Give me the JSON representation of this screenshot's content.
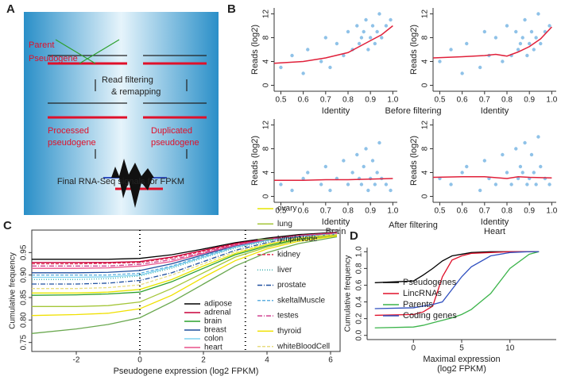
{
  "panel_letters": [
    "A",
    "B",
    "C",
    "D"
  ],
  "panel_a": {
    "parent_label": [
      "Parent",
      "Pseudogene"
    ],
    "filter_label": [
      "Read filtering",
      "& remapping"
    ],
    "processed_label": [
      "Processed",
      "pseudogene"
    ],
    "duplicated_label": [
      "Duplicated",
      "pseudogene"
    ],
    "final_label": "Final RNA-Seq signals for FPKM"
  },
  "panel_b": {
    "before": "Before filtering",
    "after": "After filtering"
  },
  "chart_data": [
    {
      "type": "scatter",
      "xlabel": "Identity",
      "ylabel": "Reads (log2)",
      "xlim": [
        0.47,
        1.02
      ],
      "ylim": [
        -1,
        13
      ],
      "xticks": [
        0.5,
        0.6,
        0.7,
        0.8,
        0.9,
        {
          "value": 1.0,
          "label": "1.0"
        }
      ],
      "yticks": [
        0,
        4,
        8,
        12
      ],
      "points": {
        "color": "#6aaee0",
        "x": [
          0.5,
          0.55,
          0.6,
          0.62,
          0.68,
          0.7,
          0.72,
          0.75,
          0.78,
          0.8,
          0.82,
          0.84,
          0.85,
          0.86,
          0.87,
          0.88,
          0.89,
          0.9,
          0.91,
          0.92,
          0.93,
          0.94,
          0.95,
          0.97,
          0.99
        ],
        "values": [
          3,
          5,
          2,
          6,
          4,
          8,
          3,
          7,
          5,
          9,
          6,
          10,
          7,
          8,
          9,
          11,
          6,
          8,
          10,
          7,
          9,
          12,
          8,
          10,
          11
        ]
      },
      "line": {
        "color": "#e0203a",
        "x": [
          0.47,
          0.6,
          0.7,
          0.8,
          0.85,
          0.9,
          0.95,
          1.0
        ],
        "values": [
          3.7,
          4.0,
          4.6,
          5.5,
          6.5,
          7.5,
          8.5,
          10
        ]
      }
    },
    {
      "type": "scatter",
      "xlabel": "Identity",
      "ylabel": "Reads (log2)",
      "xlim": [
        0.47,
        1.02
      ],
      "ylim": [
        -1,
        13
      ],
      "xticks": [
        0.5,
        0.6,
        0.7,
        0.8,
        0.9,
        {
          "value": 1.0,
          "label": "1.0"
        }
      ],
      "yticks": [
        0,
        4,
        8,
        12
      ],
      "points": {
        "color": "#6aaee0",
        "x": [
          0.5,
          0.55,
          0.6,
          0.62,
          0.68,
          0.7,
          0.72,
          0.75,
          0.78,
          0.8,
          0.82,
          0.84,
          0.85,
          0.86,
          0.87,
          0.88,
          0.89,
          0.9,
          0.91,
          0.92,
          0.93,
          0.94,
          0.95,
          0.97,
          0.99
        ],
        "values": [
          4,
          6,
          2,
          7,
          3,
          9,
          5,
          8,
          4,
          10,
          5,
          9,
          6,
          7,
          8,
          11,
          5,
          7,
          9,
          6,
          8,
          12,
          7,
          9,
          10
        ]
      },
      "line": {
        "color": "#e0203a",
        "x": [
          0.47,
          0.6,
          0.7,
          0.75,
          0.8,
          0.85,
          0.9,
          0.95,
          1.0
        ],
        "values": [
          4.6,
          4.8,
          5.0,
          5.2,
          4.9,
          5.6,
          6.5,
          7.8,
          9.8
        ]
      }
    },
    {
      "type": "scatter",
      "xlabel": "Identity",
      "subtitle": "Brain",
      "ylabel": "Reads (log2)",
      "xlim": [
        0.47,
        1.02
      ],
      "ylim": [
        -1,
        13
      ],
      "xticks": [
        0.5,
        0.6,
        0.7,
        0.8,
        0.9,
        {
          "value": 1.0,
          "label": "1.0"
        }
      ],
      "yticks": [
        0,
        4,
        8,
        12
      ],
      "points": {
        "color": "#6aaee0",
        "x": [
          0.5,
          0.55,
          0.6,
          0.62,
          0.68,
          0.7,
          0.72,
          0.75,
          0.78,
          0.8,
          0.82,
          0.84,
          0.85,
          0.86,
          0.87,
          0.88,
          0.89,
          0.9,
          0.91,
          0.92,
          0.93,
          0.94,
          0.95,
          0.97,
          0.99
        ],
        "values": [
          2,
          1,
          3,
          4,
          2,
          5,
          1,
          3,
          6,
          2,
          4,
          7,
          3,
          2,
          5,
          8,
          1,
          3,
          6,
          2,
          4,
          9,
          3,
          2,
          1
        ]
      },
      "line": {
        "color": "#e0203a",
        "x": [
          0.47,
          0.6,
          0.7,
          0.8,
          0.9,
          1.0
        ],
        "values": [
          2.7,
          2.7,
          2.8,
          2.8,
          2.9,
          3.0
        ]
      }
    },
    {
      "type": "scatter",
      "xlabel": "Identity",
      "subtitle": "Heart",
      "ylabel": "Reads (log2)",
      "xlim": [
        0.47,
        1.02
      ],
      "ylim": [
        -1,
        13
      ],
      "xticks": [
        0.5,
        0.6,
        0.7,
        0.8,
        0.9,
        {
          "value": 1.0,
          "label": "1.0"
        }
      ],
      "yticks": [
        0,
        4,
        8,
        12
      ],
      "points": {
        "color": "#6aaee0",
        "x": [
          0.5,
          0.55,
          0.6,
          0.62,
          0.68,
          0.7,
          0.72,
          0.75,
          0.78,
          0.8,
          0.82,
          0.84,
          0.85,
          0.86,
          0.87,
          0.88,
          0.89,
          0.9,
          0.91,
          0.92,
          0.93,
          0.94,
          0.95,
          0.97,
          0.99
        ],
        "values": [
          3,
          2,
          4,
          5,
          1,
          6,
          3,
          2,
          7,
          4,
          2,
          8,
          3,
          5,
          4,
          9,
          2,
          3,
          7,
          4,
          2,
          10,
          5,
          3,
          2
        ]
      },
      "line": {
        "color": "#e0203a",
        "x": [
          0.47,
          0.6,
          0.7,
          0.8,
          0.85,
          0.9,
          1.0
        ],
        "values": [
          3.2,
          3.3,
          3.3,
          3.0,
          3.3,
          3.2,
          3.1
        ]
      }
    },
    {
      "type": "line",
      "xlabel": "Pseudogene expression (log2 FPKM)",
      "ylabel": "Cumulative frequency",
      "xlim": [
        -3.4,
        6.3
      ],
      "ylim": [
        0.73,
        1.0
      ],
      "xticks": [
        -2,
        0,
        2,
        4,
        6
      ],
      "yticks": [
        0.75,
        {
          "value": 0.8,
          "label": "0.80"
        },
        0.85,
        {
          "value": 0.9,
          "label": "0.90"
        },
        0.95
      ],
      "vlines": [
        0,
        3.32
      ],
      "frame": true,
      "x": [
        -3.4,
        -2,
        -1,
        0,
        1,
        2,
        3,
        4,
        5,
        6.2
      ],
      "series": [
        {
          "name": "adipose",
          "color": "#000000",
          "values": [
            0.935,
            0.935,
            0.935,
            0.937,
            0.945,
            0.958,
            0.972,
            0.982,
            0.99,
            0.995
          ]
        },
        {
          "name": "adrenal",
          "color": "#c8003c",
          "values": [
            0.928,
            0.928,
            0.928,
            0.93,
            0.94,
            0.955,
            0.97,
            0.98,
            0.988,
            0.994
          ]
        },
        {
          "name": "brain",
          "color": "#2ca02c",
          "values": [
            0.855,
            0.856,
            0.858,
            0.862,
            0.885,
            0.915,
            0.945,
            0.965,
            0.98,
            0.99
          ]
        },
        {
          "name": "breast",
          "color": "#1f4e9c",
          "values": [
            0.905,
            0.905,
            0.906,
            0.91,
            0.925,
            0.945,
            0.965,
            0.978,
            0.987,
            0.993
          ]
        },
        {
          "name": "colon",
          "color": "#7fd3f0",
          "values": [
            0.895,
            0.895,
            0.896,
            0.9,
            0.918,
            0.94,
            0.962,
            0.977,
            0.986,
            0.992
          ]
        },
        {
          "name": "heart",
          "color": "#e8508a",
          "values": [
            0.915,
            0.915,
            0.916,
            0.92,
            0.93,
            0.948,
            0.966,
            0.979,
            0.988,
            0.993
          ]
        },
        {
          "name": "ovary",
          "color": "#e6e600",
          "values": [
            0.86,
            0.86,
            0.862,
            0.868,
            0.89,
            0.92,
            0.948,
            0.968,
            0.982,
            0.99
          ]
        },
        {
          "name": "lung",
          "color": "#a4c639",
          "values": [
            0.83,
            0.83,
            0.832,
            0.84,
            0.87,
            0.905,
            0.94,
            0.962,
            0.978,
            0.988
          ]
        },
        {
          "name": "lymphNode",
          "color": "#6aa84f",
          "values": [
            0.77,
            0.78,
            0.79,
            0.805,
            0.84,
            0.88,
            0.92,
            0.95,
            0.97,
            0.985
          ]
        },
        {
          "name": "kidney",
          "color": "#e03050",
          "dash": "4,2",
          "values": [
            0.925,
            0.925,
            0.926,
            0.928,
            0.938,
            0.953,
            0.968,
            0.98,
            0.988,
            0.994
          ]
        },
        {
          "name": "liver",
          "color": "#40b0b0",
          "dash": "1,2",
          "values": [
            0.89,
            0.89,
            0.892,
            0.898,
            0.915,
            0.938,
            0.96,
            0.975,
            0.985,
            0.992
          ]
        },
        {
          "name": "prostate",
          "color": "#2050a0",
          "dash": "6,2,1,2",
          "values": [
            0.88,
            0.88,
            0.882,
            0.888,
            0.905,
            0.93,
            0.955,
            0.972,
            0.984,
            0.991
          ]
        },
        {
          "name": "skeltalMuscle",
          "color": "#60b0e0",
          "dash": "4,2",
          "values": [
            0.9,
            0.9,
            0.9,
            0.904,
            0.92,
            0.942,
            0.963,
            0.977,
            0.986,
            0.992
          ]
        },
        {
          "name": "testes",
          "color": "#d04090",
          "dash": "6,2,1,2",
          "values": [
            0.92,
            0.92,
            0.92,
            0.924,
            0.934,
            0.95,
            0.967,
            0.979,
            0.988,
            0.993
          ]
        },
        {
          "name": "thyroid",
          "color": "#f0e000",
          "values": [
            0.81,
            0.812,
            0.815,
            0.825,
            0.855,
            0.895,
            0.932,
            0.958,
            0.975,
            0.987
          ]
        },
        {
          "name": "whiteBloodCell",
          "color": "#e8dc80",
          "dash": "4,2",
          "values": [
            0.87,
            0.87,
            0.872,
            0.878,
            0.9,
            0.925,
            0.952,
            0.97,
            0.983,
            0.991
          ]
        }
      ]
    },
    {
      "type": "line",
      "xlabel": [
        "Maximal expression",
        "(log2 FPKM)"
      ],
      "ylabel": "Cumulative frequency",
      "xlim": [
        -4.8,
        14.8
      ],
      "ylim": [
        -0.05,
        1.05
      ],
      "xticks": [
        0,
        5,
        10
      ],
      "yticks": [
        {
          "value": 0,
          "label": "0.0"
        },
        0.2,
        0.4,
        0.6,
        0.8,
        {
          "value": 1,
          "label": "1.0"
        }
      ],
      "x": [
        -4,
        0,
        1,
        2,
        3,
        4,
        5,
        6,
        8,
        10,
        12,
        13
      ],
      "series": [
        {
          "name": "Pseudogenes",
          "color": "#000000",
          "values": [
            0.63,
            0.65,
            0.72,
            0.8,
            0.89,
            0.95,
            0.97,
            0.99,
            1.0,
            1.0,
            1.0,
            1.0
          ]
        },
        {
          "name": "LincRNAs",
          "color": "#e0102a",
          "values": [
            0.24,
            0.25,
            0.28,
            0.35,
            0.7,
            0.9,
            0.95,
            0.98,
            0.99,
            1.0,
            1.0,
            1.0
          ]
        },
        {
          "name": "Parents",
          "color": "#3cb44b",
          "values": [
            0.09,
            0.1,
            0.12,
            0.15,
            0.18,
            0.21,
            0.25,
            0.31,
            0.5,
            0.8,
            0.97,
            1.0
          ]
        },
        {
          "name": "Coding genes",
          "color": "#3050c0",
          "values": [
            0.32,
            0.33,
            0.35,
            0.37,
            0.4,
            0.55,
            0.7,
            0.82,
            0.95,
            0.99,
            1.0,
            1.0
          ]
        }
      ]
    }
  ]
}
